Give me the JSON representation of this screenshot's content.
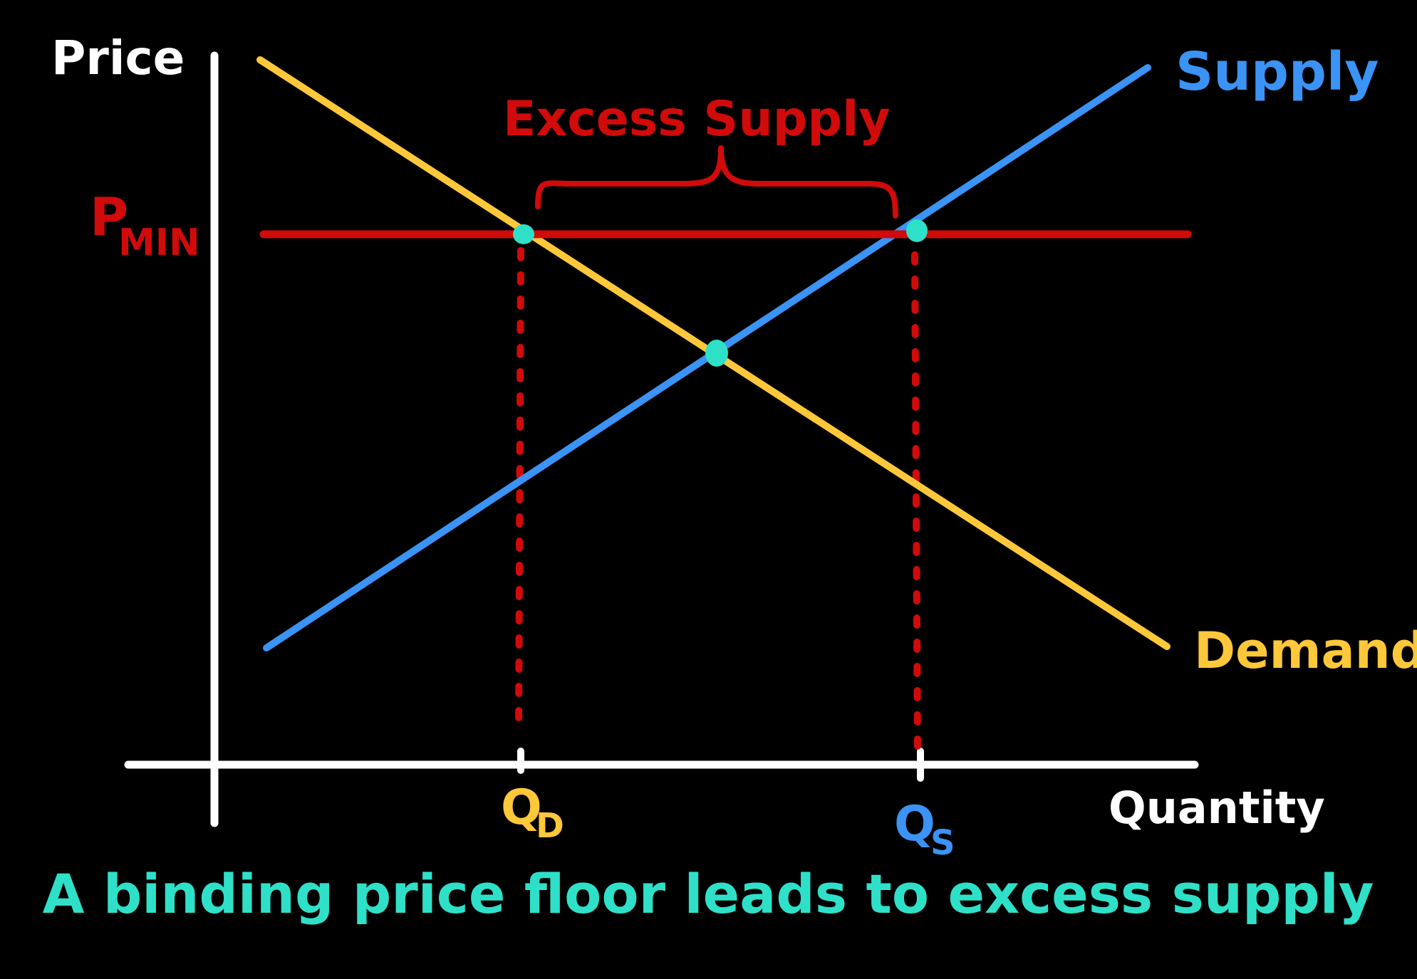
{
  "axes": {
    "y_label": "Price",
    "x_label": "Quantity"
  },
  "curves": {
    "supply_label": "Supply",
    "demand_label": "Demand",
    "supply_color": "#3a93f5",
    "demand_color": "#ffc83a"
  },
  "price_floor": {
    "label_main": "P",
    "label_sub": "MIN",
    "color": "#d10a0a"
  },
  "excess": {
    "label": "Excess Supply",
    "color": "#d10a0a"
  },
  "quantities": {
    "qd_main": "Q",
    "qd_sub": "D",
    "qs_main": "Q",
    "qs_sub": "S"
  },
  "points_color": "#2fe0c8",
  "caption": "A binding price floor leads to excess supply",
  "caption_color": "#2fe0c8"
}
